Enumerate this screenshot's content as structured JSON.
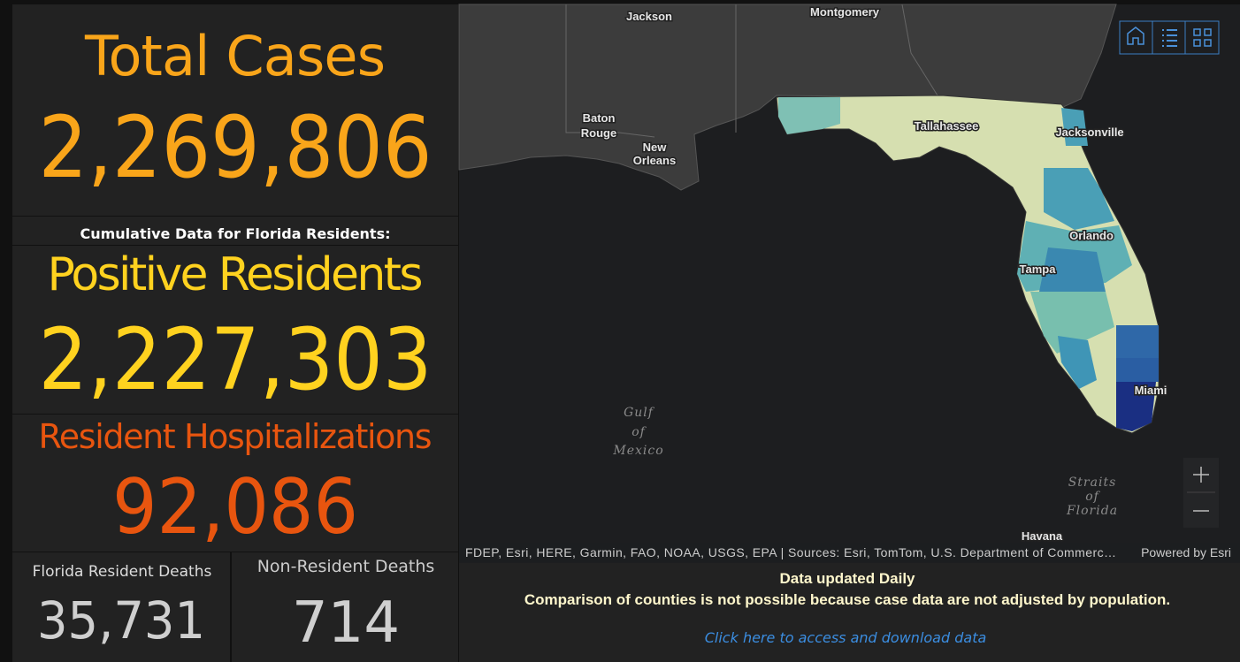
{
  "panels": {
    "total_cases": {
      "title": "Total Cases",
      "value": "2,269,806"
    },
    "subtitle": "Cumulative Data for Florida Residents:",
    "positive_residents": {
      "title": "Positive Residents",
      "value": "2,227,303"
    },
    "hospitalizations": {
      "title": "Resident Hospitalizations",
      "value": "92,086"
    },
    "resident_deaths": {
      "title": "Florida Resident Deaths",
      "value": "35,731"
    },
    "nonresident_deaths": {
      "title": "Non-Resident Deaths",
      "value": "714"
    }
  },
  "map": {
    "places": [
      {
        "lines": [
          "Jackson"
        ]
      },
      {
        "lines": [
          "Montgomery"
        ]
      },
      {
        "lines": [
          "Baton",
          "Rouge"
        ]
      },
      {
        "lines": [
          "New",
          "Orleans"
        ]
      },
      {
        "lines": [
          "Tallahassee"
        ]
      },
      {
        "lines": [
          "Jacksonville"
        ]
      },
      {
        "lines": [
          "Orlando"
        ]
      },
      {
        "lines": [
          "Tampa"
        ]
      },
      {
        "lines": [
          "Miami"
        ]
      },
      {
        "lines": [
          "Gulf",
          "of",
          "Mexico"
        ]
      },
      {
        "lines": [
          "Straits",
          "of",
          "Florida"
        ]
      },
      {
        "lines": [
          "Havana"
        ]
      }
    ],
    "attribution": "FDEP, Esri, HERE, Garmin, FAO, NOAA, USGS, EPA | Sources: Esri, TomTom, U.S. Department of Commerc…",
    "powered_by": "Powered by Esri"
  },
  "footer": {
    "updated": "Data updated Daily",
    "note": "Comparison of counties is not possible because case data are not adjusted by population.",
    "link": "Click here to access and download data"
  }
}
